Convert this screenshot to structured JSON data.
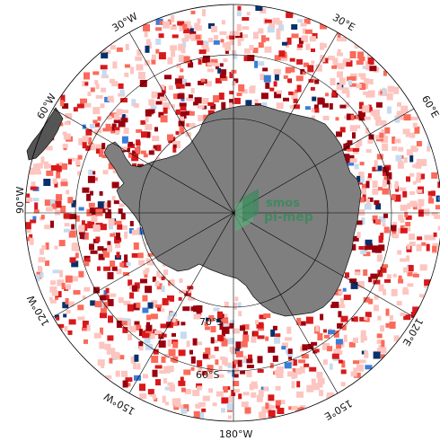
{
  "map": {
    "projection": "south-polar-stereographic",
    "colors": {
      "background": "#ffffff",
      "land": "#7f7f7f",
      "coast": "#111111",
      "grid": "#000000",
      "neg_strong": "#08306b",
      "neg_mid": "#3b7dd8",
      "neg_light": "#c6dbef",
      "pos_light": "#fcc5c0",
      "pos_mid": "#fb6a5a",
      "pos_strong": "#d7191c",
      "pos_dark": "#99000d"
    },
    "labels": {
      "lon_30w": "30°W",
      "lon_30e": "30°E",
      "lon_60w": "60°W",
      "lon_60e": "60°E",
      "lon_90w": "90°W",
      "lon_120w": "120°W",
      "lon_120e": "120°E",
      "lon_150w": "150°W",
      "lon_150e": "150°E",
      "lon_180w": "180°W",
      "lat_70s": "70°S",
      "lat_60s": "60°S"
    },
    "logo": {
      "line1": "smos",
      "line2": "pi-mep",
      "color": "#2e8b57"
    }
  }
}
